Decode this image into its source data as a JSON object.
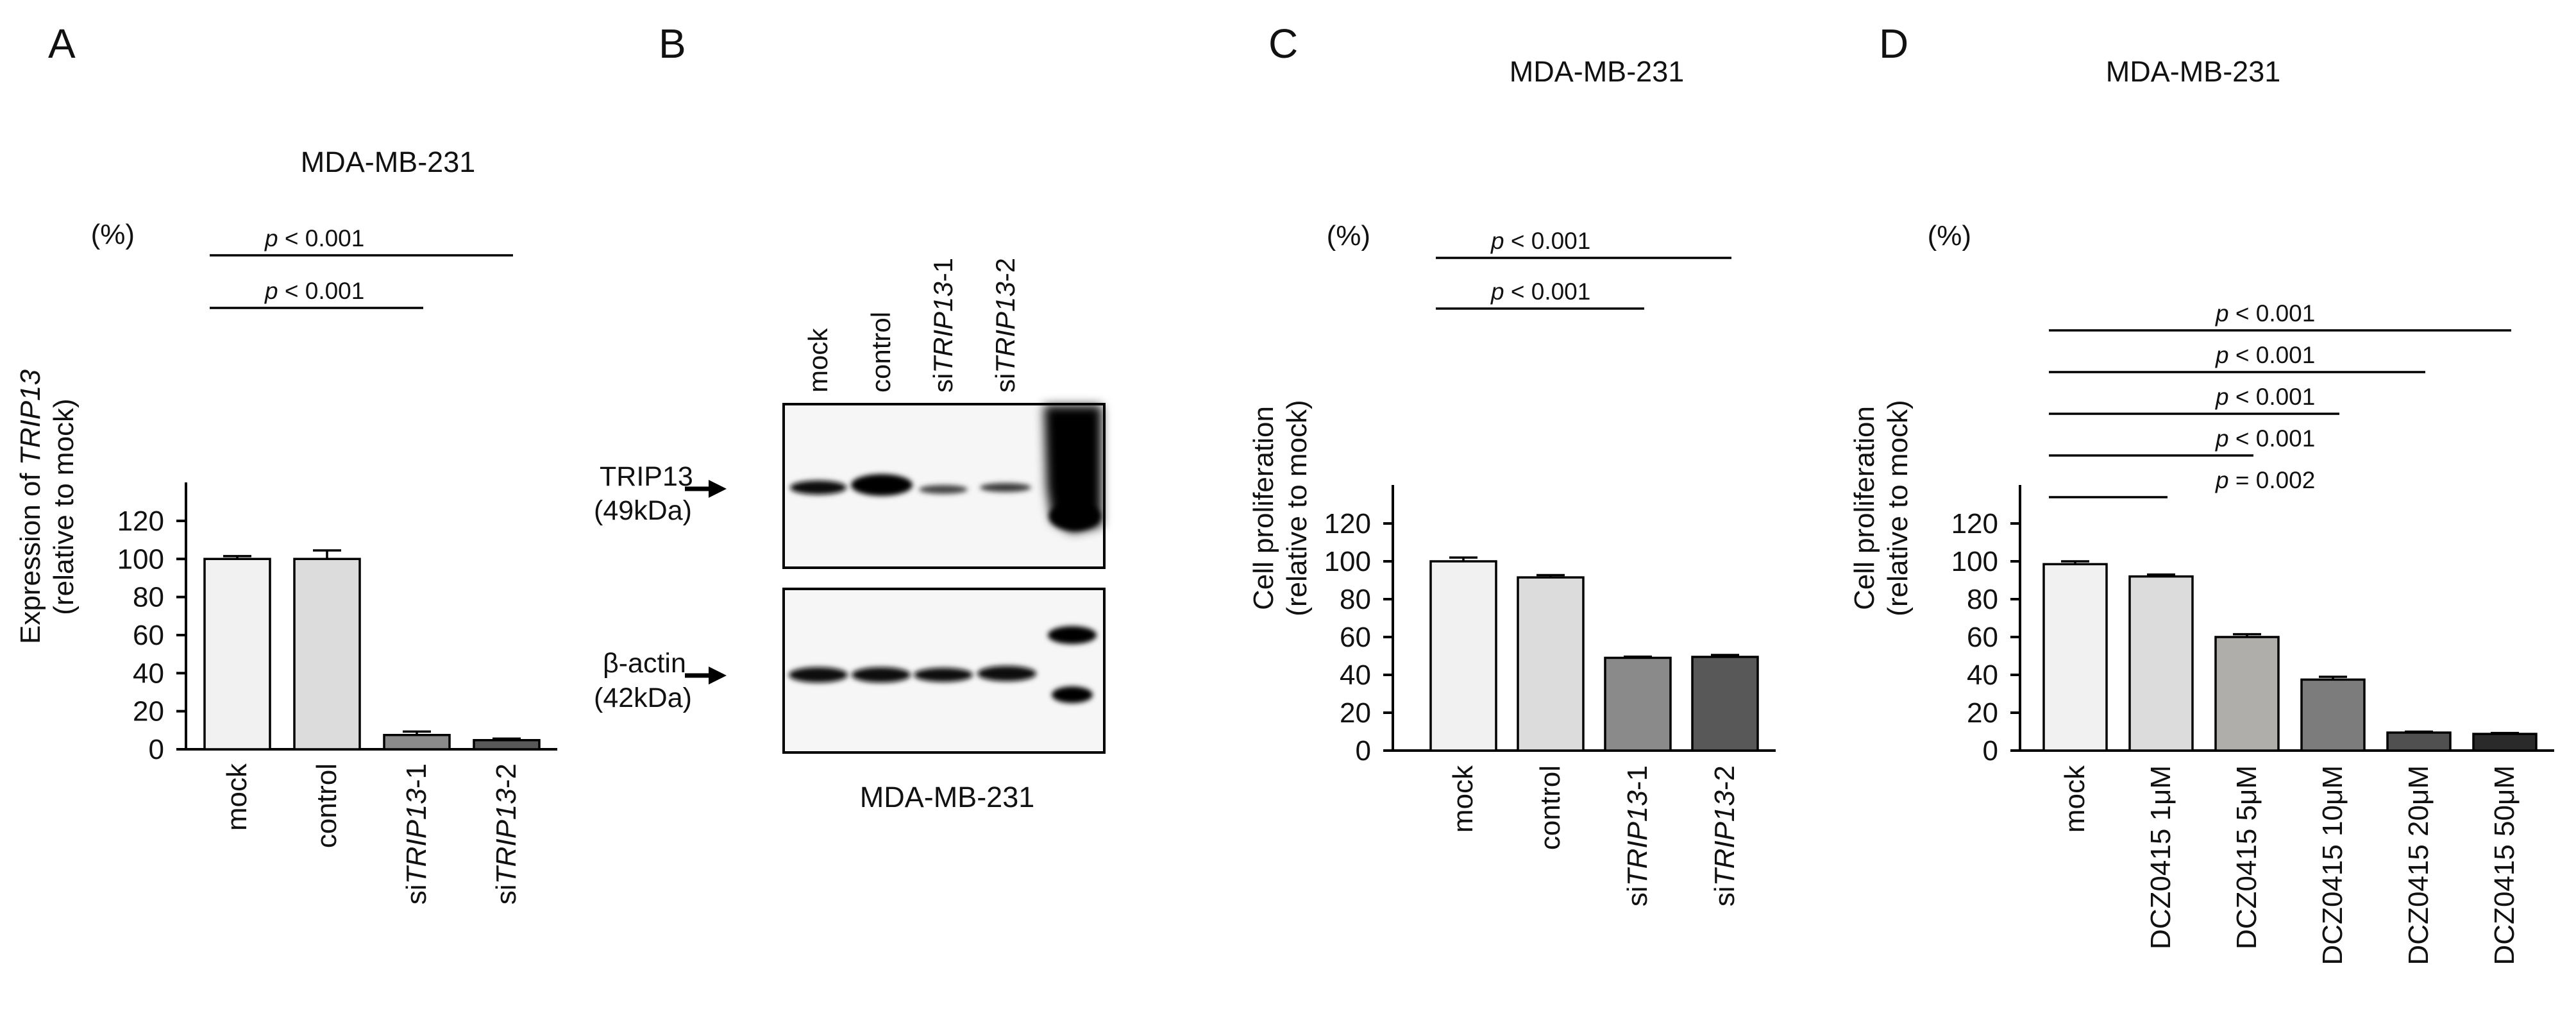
{
  "panels": {
    "A": {
      "letter": "A"
    },
    "B": {
      "letter": "B",
      "lanes": [
        {
          "plain": "mock",
          "italic": "",
          "suffix": ""
        },
        {
          "plain": "control",
          "italic": "",
          "suffix": ""
        },
        {
          "plain": "si",
          "italic": "TRIP13",
          "suffix": "-1"
        },
        {
          "plain": "si",
          "italic": "TRIP13",
          "suffix": "-2"
        }
      ],
      "blot1": {
        "name": "TRIP13",
        "size": "(49kDa)"
      },
      "blot2": {
        "name": "β-actin",
        "size": "(42kDa)"
      },
      "caption": "MDA-MB-231"
    },
    "C": {
      "letter": "C"
    },
    "D": {
      "letter": "D"
    }
  },
  "chart_data": [
    {
      "id": "A",
      "type": "bar",
      "title": "MDA-MB-231",
      "ylabel_lines": [
        "Expression of TRIP13",
        "(relative to mock)"
      ],
      "ylabel_italic": "TRIP13",
      "y_unit": "(%)",
      "ylim": [
        0,
        120
      ],
      "yticks": [
        0,
        20,
        40,
        60,
        80,
        100,
        120
      ],
      "categories": [
        {
          "plain": "mock",
          "italic": "",
          "suffix": ""
        },
        {
          "plain": "control",
          "italic": "",
          "suffix": ""
        },
        {
          "plain": "si",
          "italic": "TRIP13",
          "suffix": "-1"
        },
        {
          "plain": "si",
          "italic": "TRIP13",
          "suffix": "-2"
        }
      ],
      "values": [
        100,
        100,
        7.5,
        4.8
      ],
      "errors": [
        1.5,
        4.5,
        1.8,
        0.8
      ],
      "colors": [
        "#f1f1f1",
        "#dcdcdc",
        "#8a8a8a",
        "#585858"
      ],
      "pvalues": [
        {
          "from": 0,
          "to": 2,
          "p_prefix": "p",
          "text": " < 0.001"
        },
        {
          "from": 0,
          "to": 3,
          "p_prefix": "p",
          "text": " < 0.001"
        }
      ]
    },
    {
      "id": "C",
      "type": "bar",
      "title": "MDA-MB-231",
      "ylabel_lines": [
        "Cell proliferation",
        "(relative to mock)"
      ],
      "ylabel_italic": "",
      "y_unit": "(%)",
      "ylim": [
        0,
        120
      ],
      "yticks": [
        0,
        20,
        40,
        60,
        80,
        100,
        120
      ],
      "categories": [
        {
          "plain": "mock",
          "italic": "",
          "suffix": ""
        },
        {
          "plain": "control",
          "italic": "",
          "suffix": ""
        },
        {
          "plain": "si",
          "italic": "TRIP13",
          "suffix": "-1"
        },
        {
          "plain": "si",
          "italic": "TRIP13",
          "suffix": "-2"
        }
      ],
      "values": [
        100,
        91.5,
        49,
        49.5
      ],
      "errors": [
        2,
        1.2,
        0.6,
        1
      ],
      "colors": [
        "#f1f1f1",
        "#dcdcdc",
        "#8a8a8a",
        "#585858"
      ],
      "pvalues": [
        {
          "from": 0,
          "to": 2,
          "p_prefix": "p",
          "text": " < 0.001"
        },
        {
          "from": 0,
          "to": 3,
          "p_prefix": "p",
          "text": " < 0.001"
        }
      ]
    },
    {
      "id": "D",
      "type": "bar",
      "title": "MDA-MB-231",
      "ylabel_lines": [
        "Cell proliferation",
        "(relative to mock)"
      ],
      "ylabel_italic": "",
      "y_unit": "(%)",
      "ylim": [
        0,
        120
      ],
      "yticks": [
        0,
        20,
        40,
        60,
        80,
        100,
        120
      ],
      "categories": [
        {
          "plain": "mock",
          "italic": "",
          "suffix": ""
        },
        {
          "plain": "DCZ0415   1μM",
          "italic": "",
          "suffix": ""
        },
        {
          "plain": "DCZ0415   5μM",
          "italic": "",
          "suffix": ""
        },
        {
          "plain": "DCZ0415 10μM",
          "italic": "",
          "suffix": ""
        },
        {
          "plain": "DCZ0415 20μM",
          "italic": "",
          "suffix": ""
        },
        {
          "plain": "DCZ0415 50μM",
          "italic": "",
          "suffix": ""
        }
      ],
      "values": [
        98.5,
        92,
        60,
        37.5,
        9.5,
        8.8
      ],
      "errors": [
        1.5,
        1,
        1.5,
        1.5,
        0.5,
        0.5
      ],
      "colors": [
        "#f1f1f1",
        "#dcdcdc",
        "#b0aeab",
        "#7c7c7c",
        "#505050",
        "#2a2a2a"
      ],
      "pvalues": [
        {
          "from": 0,
          "to": 1,
          "p_prefix": "p",
          "text": " = 0.002"
        },
        {
          "from": 0,
          "to": 2,
          "p_prefix": "p",
          "text": " < 0.001"
        },
        {
          "from": 0,
          "to": 3,
          "p_prefix": "p",
          "text": " < 0.001"
        },
        {
          "from": 0,
          "to": 4,
          "p_prefix": "p",
          "text": " < 0.001"
        },
        {
          "from": 0,
          "to": 5,
          "p_prefix": "p",
          "text": " < 0.001"
        }
      ]
    }
  ]
}
